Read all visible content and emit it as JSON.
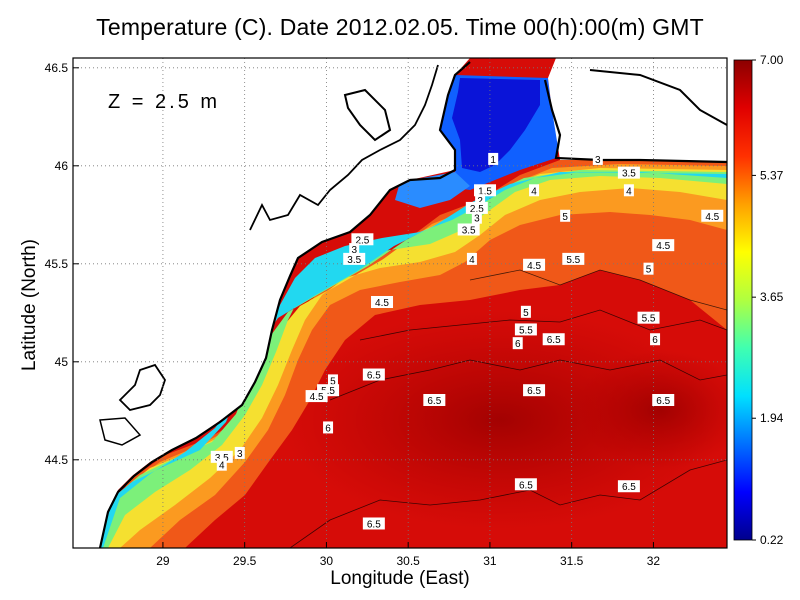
{
  "title": "Temperature (C). Date 2012.02.05. Time 00(h):00(m) GMT",
  "depth_label": "Z = 2.5 m",
  "axes": {
    "xlabel": "Longitude (East)",
    "ylabel": "Latitude (North)",
    "xlim": [
      28.45,
      32.45
    ],
    "ylim": [
      44.05,
      46.55
    ],
    "xticks": [
      "29",
      "29.5",
      "30",
      "30.5",
      "31",
      "31.5",
      "32"
    ],
    "yticks": [
      "44.5",
      "45",
      "45.5",
      "46",
      "46.5"
    ],
    "grid": "dotted"
  },
  "colorbar": {
    "min": 0.22,
    "max": 7.0,
    "labels": [
      "7.00",
      "5.37",
      "3.65",
      "1.94",
      "0.22"
    ],
    "colors": [
      "#00008c",
      "#0000ff",
      "#0070ff",
      "#00e0ff",
      "#40ffb0",
      "#b0ff40",
      "#ffff00",
      "#ffa000",
      "#ff3000",
      "#e00000",
      "#8c0000"
    ]
  },
  "contour_labels": [
    "1",
    "1.5",
    "2",
    "2.5",
    "3",
    "3.5",
    "4",
    "4.5",
    "5",
    "5.5",
    "6",
    "6.5"
  ],
  "chart_data": {
    "type": "heatmap",
    "title": "Temperature (C). Date 2012.02.05. Time 00(h):00(m) GMT",
    "xlabel": "Longitude (East)",
    "ylabel": "Latitude (North)",
    "xlim": [
      28.45,
      32.45
    ],
    "ylim": [
      44.05,
      46.55
    ],
    "color_range": [
      0.22,
      7.0
    ],
    "contour_labels": [
      {
        "text": "1",
        "x": 31.02,
        "y": 46.03
      },
      {
        "text": "1.5",
        "x": 30.97,
        "y": 45.87
      },
      {
        "text": "2",
        "x": 30.94,
        "y": 45.82
      },
      {
        "text": "2.5",
        "x": 30.92,
        "y": 45.78
      },
      {
        "text": "3",
        "x": 30.92,
        "y": 45.73
      },
      {
        "text": "3.5",
        "x": 30.87,
        "y": 45.67
      },
      {
        "text": "4",
        "x": 31.27,
        "y": 45.87
      },
      {
        "text": "3",
        "x": 31.66,
        "y": 46.03
      },
      {
        "text": "3.5",
        "x": 31.85,
        "y": 45.96
      },
      {
        "text": "4",
        "x": 31.85,
        "y": 45.87
      },
      {
        "text": "5",
        "x": 31.97,
        "y": 45.47
      },
      {
        "text": "4.5",
        "x": 32.36,
        "y": 45.74
      },
      {
        "text": "4.5",
        "x": 32.06,
        "y": 45.59
      },
      {
        "text": "2.5",
        "x": 30.22,
        "y": 45.62
      },
      {
        "text": "3",
        "x": 30.17,
        "y": 45.57
      },
      {
        "text": "3.5",
        "x": 30.17,
        "y": 45.52
      },
      {
        "text": "4",
        "x": 30.89,
        "y": 45.52
      },
      {
        "text": "4.5",
        "x": 31.27,
        "y": 45.49
      },
      {
        "text": "5.5",
        "x": 31.51,
        "y": 45.52
      },
      {
        "text": "5",
        "x": 31.46,
        "y": 45.74
      },
      {
        "text": "4.5",
        "x": 30.34,
        "y": 45.3
      },
      {
        "text": "5",
        "x": 31.22,
        "y": 45.25
      },
      {
        "text": "5.5",
        "x": 31.22,
        "y": 45.16
      },
      {
        "text": "6",
        "x": 31.17,
        "y": 45.09
      },
      {
        "text": "6.5",
        "x": 31.39,
        "y": 45.11
      },
      {
        "text": "5.5",
        "x": 31.97,
        "y": 45.22
      },
      {
        "text": "6",
        "x": 32.01,
        "y": 45.11
      },
      {
        "text": "5",
        "x": 30.04,
        "y": 44.9
      },
      {
        "text": "5.5",
        "x": 30.01,
        "y": 44.85
      },
      {
        "text": "4.5",
        "x": 29.94,
        "y": 44.82
      },
      {
        "text": "6",
        "x": 30.01,
        "y": 44.66
      },
      {
        "text": "6.5",
        "x": 30.29,
        "y": 44.93
      },
      {
        "text": "6.5",
        "x": 30.66,
        "y": 44.8
      },
      {
        "text": "6.5",
        "x": 31.27,
        "y": 44.85
      },
      {
        "text": "6.5",
        "x": 32.06,
        "y": 44.8
      },
      {
        "text": "3.5",
        "x": 29.36,
        "y": 44.51
      },
      {
        "text": "3",
        "x": 29.47,
        "y": 44.53
      },
      {
        "text": "4",
        "x": 29.36,
        "y": 44.47
      },
      {
        "text": "6.5",
        "x": 31.22,
        "y": 44.37
      },
      {
        "text": "6.5",
        "x": 31.85,
        "y": 44.36
      },
      {
        "text": "6.5",
        "x": 30.29,
        "y": 44.17
      }
    ]
  }
}
